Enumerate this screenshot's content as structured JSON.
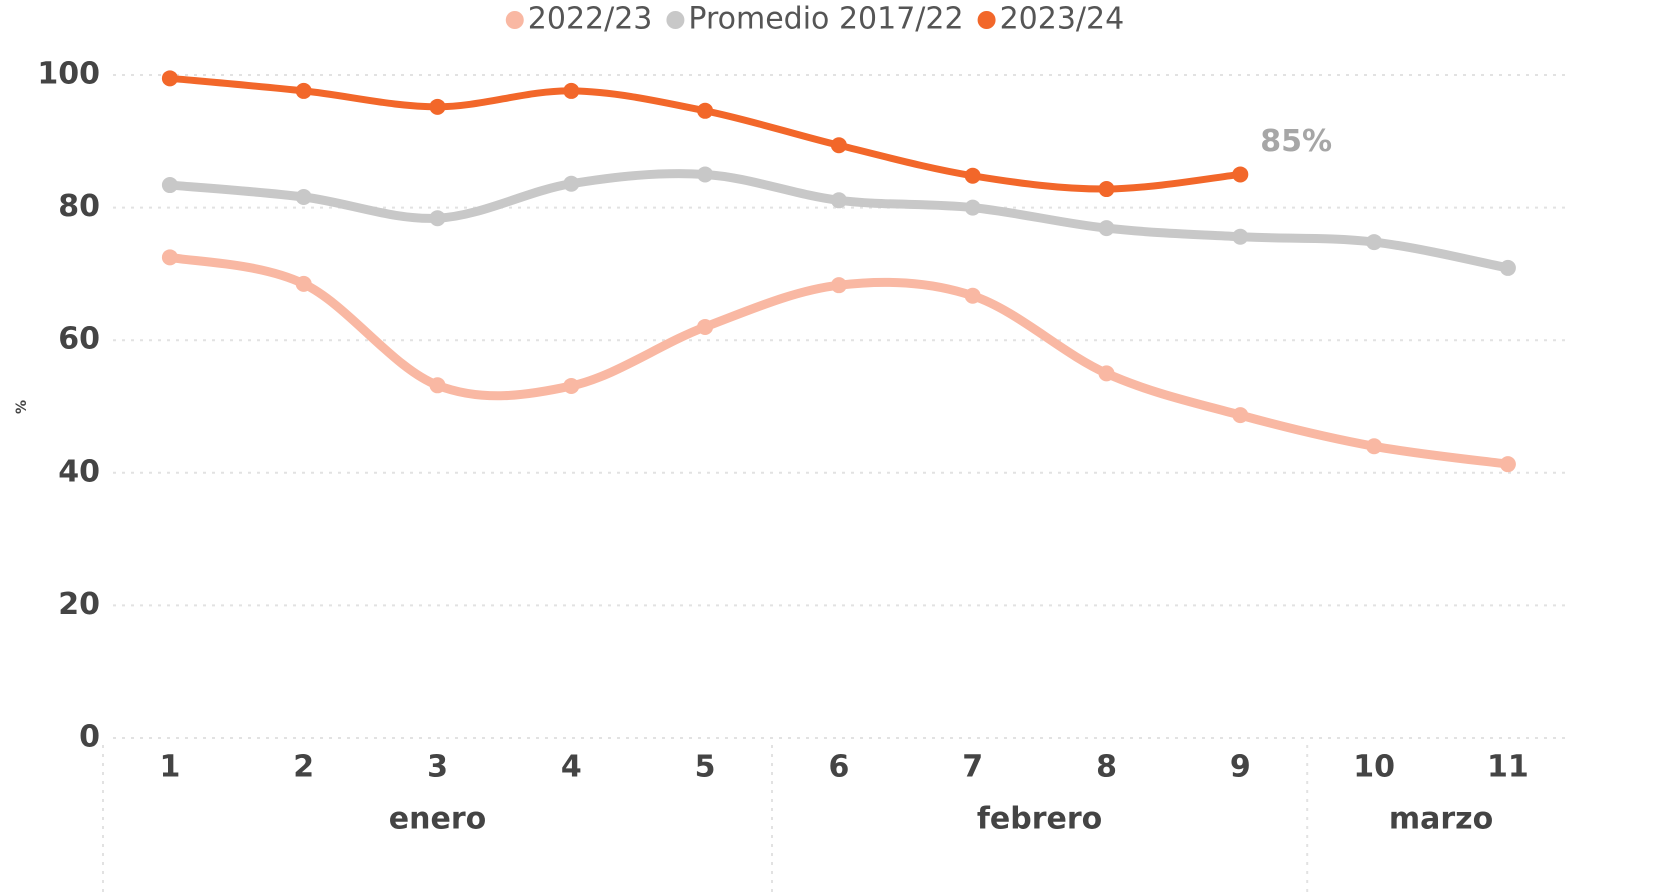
{
  "chart_data": {
    "type": "line",
    "y_label": "%",
    "categories": [
      "1",
      "2",
      "3",
      "4",
      "5",
      "6",
      "7",
      "8",
      "9",
      "10",
      "11"
    ],
    "months": [
      "enero",
      "enero",
      "enero",
      "enero",
      "enero",
      "febrero",
      "febrero",
      "febrero",
      "febrero",
      "marzo",
      "marzo"
    ],
    "series": [
      {
        "name": "2022/23",
        "color": "#f9b8a3",
        "values": [
          72.5,
          68.5,
          53.2,
          53.1,
          62,
          68.3,
          66.7,
          55,
          48.7,
          44,
          41.3
        ]
      },
      {
        "name": "Promedio 2017/22",
        "color": "#c8c8c8",
        "values": [
          83.4,
          81.6,
          78.4,
          83.6,
          85,
          81.1,
          80,
          76.9,
          75.6,
          74.8,
          70.9
        ]
      },
      {
        "name": "2023/24",
        "color": "#f2672a",
        "values": [
          99.5,
          97.6,
          95.2,
          97.6,
          94.6,
          89.4,
          84.8,
          82.8,
          85,
          null,
          null
        ],
        "value_labels": [
          null,
          null,
          null,
          null,
          null,
          null,
          null,
          null,
          "85%",
          null,
          null
        ]
      }
    ],
    "ylim": [
      0,
      100
    ],
    "yticks": [
      0,
      20,
      40,
      60,
      80,
      100
    ],
    "grid": true,
    "legend": "top"
  }
}
